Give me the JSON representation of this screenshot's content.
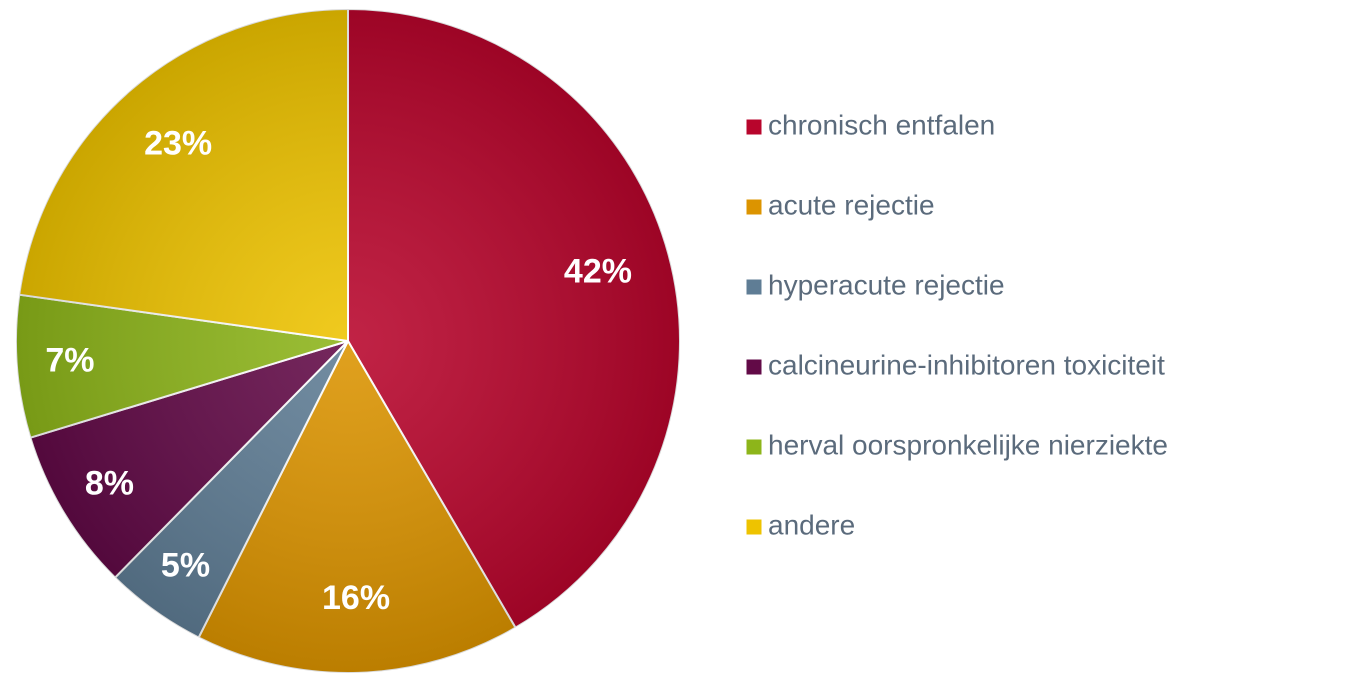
{
  "chart_data": {
    "type": "pie",
    "categories": [
      "chronisch entfalen",
      "acute rejectie",
      "hyperacute rejectie",
      "calcineurine-inhibitoren toxiciteit",
      "herval oorspronkelijke nierziekte",
      "andere"
    ],
    "values": [
      42,
      16,
      5,
      8,
      7,
      23
    ],
    "value_labels": [
      "42%",
      "16%",
      "5%",
      "8%",
      "7%",
      "23%"
    ],
    "colors": [
      "#b8052c",
      "#dc9400",
      "#5f7d95",
      "#620a47",
      "#8db51a",
      "#eec300"
    ]
  }
}
